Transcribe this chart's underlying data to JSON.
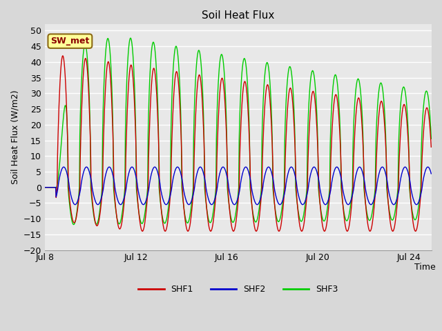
{
  "title": "Soil Heat Flux",
  "ylabel": "Soil Heat Flux (W/m2)",
  "xlabel": "Time",
  "ylim": [
    -20,
    52
  ],
  "yticks": [
    -20,
    -15,
    -10,
    -5,
    0,
    5,
    10,
    15,
    20,
    25,
    30,
    35,
    40,
    45,
    50
  ],
  "xtick_positions": [
    0,
    4,
    8,
    12,
    16
  ],
  "xtick_labels": [
    "Jul 8",
    "Jul 12",
    "Jul 16",
    "Jul 20",
    "Jul 24"
  ],
  "colors": {
    "SHF1": "#cc0000",
    "SHF2": "#0000cc",
    "SHF3": "#00cc00"
  },
  "fig_bg": "#d8d8d8",
  "plot_bg": "#e8e8e8",
  "grid_color": "#ffffff",
  "annotation_label": "SW_met",
  "annotation_fg": "#8b0000",
  "annotation_bg": "#ffff99",
  "annotation_border": "#8b6914",
  "legend_labels": [
    "SHF1",
    "SHF2",
    "SHF3"
  ]
}
